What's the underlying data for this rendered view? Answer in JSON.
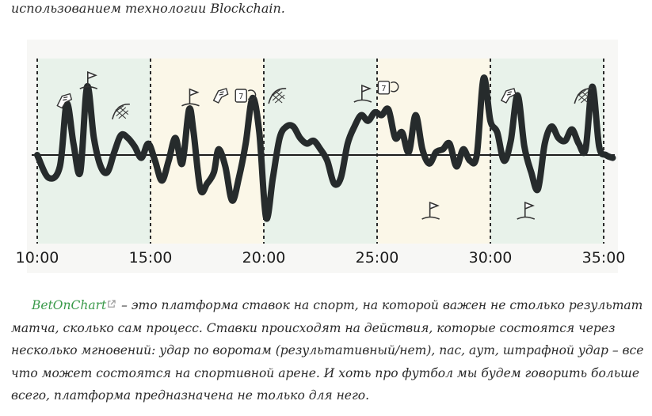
{
  "article": {
    "intro_tail": "использованием технологии Blockchain.",
    "paragraph": {
      "link_text": "BetOnChart",
      "body_text": " – это платформа ставок на спорт, на которой важен не столько результат матча, сколько сам процесс. Ставки происходят на действия, которые состоятся через несколько мгновений: удар по воротам (результативный/нет), пас, аут, штрафной удар – все что может состоятся на спортивной арене. И хоть про футбол мы будем говорить больше всего, платформа предназначена не только для него."
    }
  },
  "chart_data": {
    "type": "line",
    "x_tick_labels": [
      "10:00",
      "15:00",
      "20:00",
      "25:00",
      "30:00",
      "35:00"
    ],
    "xlim": [
      10,
      35
    ],
    "band_colors": [
      "#e8f2ea",
      "#fbf7e8",
      "#e8f2ea",
      "#fbf7e8",
      "#e8f2ea"
    ],
    "line_color": "#262b2c",
    "baseline_color": "#1c1c1c",
    "series_minutes": [
      10,
      10.5,
      11,
      11.3,
      11.6,
      11.9,
      12.2,
      12.5,
      12.8,
      13.1,
      13.4,
      13.7,
      14.0,
      14.3,
      14.6,
      14.9,
      15.2,
      15.5,
      15.8,
      16.1,
      16.4,
      16.7,
      16.9,
      17.2,
      17.5,
      17.8,
      18.0,
      18.3,
      18.6,
      18.9,
      19.2,
      19.5,
      19.8,
      20.1,
      20.4,
      20.7,
      21.0,
      21.3,
      21.6,
      21.9,
      22.2,
      22.5,
      22.8,
      23.1,
      23.4,
      23.7,
      24.0,
      24.3,
      24.6,
      24.9,
      25.2,
      25.5,
      25.8,
      26.1,
      26.4,
      26.7,
      27.0,
      27.3,
      27.6,
      27.9,
      28.2,
      28.5,
      28.8,
      29.1,
      29.4,
      29.7,
      30.0,
      30.3,
      30.6,
      30.9,
      31.2,
      31.5,
      31.8,
      32.1,
      32.4,
      32.7,
      33.0,
      33.3,
      33.6,
      33.9,
      34.2,
      34.5,
      34.8,
      35.1,
      35.4
    ],
    "series_values": [
      0,
      -0.4,
      -0.2,
      0.9,
      0.2,
      -0.3,
      1.2,
      0.3,
      -0.2,
      -0.3,
      0.05,
      0.35,
      0.3,
      0.15,
      -0.05,
      0.2,
      -0.1,
      -0.45,
      -0.1,
      0.3,
      -0.15,
      0.8,
      0.4,
      -0.6,
      -0.5,
      -0.3,
      0.1,
      -0.2,
      -0.8,
      -0.4,
      0.2,
      1.0,
      0.4,
      -1.1,
      -0.4,
      0.3,
      0.5,
      0.5,
      0.3,
      0.2,
      0.25,
      0.1,
      -0.1,
      -0.5,
      -0.4,
      0.2,
      0.5,
      0.7,
      0.6,
      0.75,
      0.7,
      0.8,
      0.3,
      0.4,
      0.05,
      0.7,
      0.1,
      -0.15,
      0.05,
      0.1,
      0.2,
      -0.2,
      0.1,
      -0.1,
      0.0,
      1.35,
      0.6,
      0.4,
      -0.1,
      0.25,
      1.05,
      0.15,
      -0.3,
      -0.6,
      0.2,
      0.5,
      0.3,
      0.25,
      0.45,
      0.2,
      0.1,
      1.2,
      0.15,
      0.0,
      -0.05
    ],
    "event_icons": [
      {
        "minute": 11.2,
        "name": "kick-icon"
      },
      {
        "minute": 12.3,
        "name": "corner-flag-icon"
      },
      {
        "minute": 13.7,
        "name": "goal-net-icon"
      },
      {
        "minute": 16.8,
        "name": "corner-flag-icon"
      },
      {
        "minute": 18.1,
        "name": "kick-icon"
      },
      {
        "minute": 19.1,
        "name": "substitution-icon"
      },
      {
        "minute": 20.6,
        "name": "goal-net-icon"
      },
      {
        "minute": 24.4,
        "name": "corner-flag-icon"
      },
      {
        "minute": 25.4,
        "name": "substitution-icon"
      },
      {
        "minute": 27.4,
        "name": "corner-flag-icon"
      },
      {
        "minute": 30.8,
        "name": "kick-icon"
      },
      {
        "minute": 31.6,
        "name": "corner-flag-icon"
      },
      {
        "minute": 34.1,
        "name": "goal-net-icon"
      }
    ]
  }
}
